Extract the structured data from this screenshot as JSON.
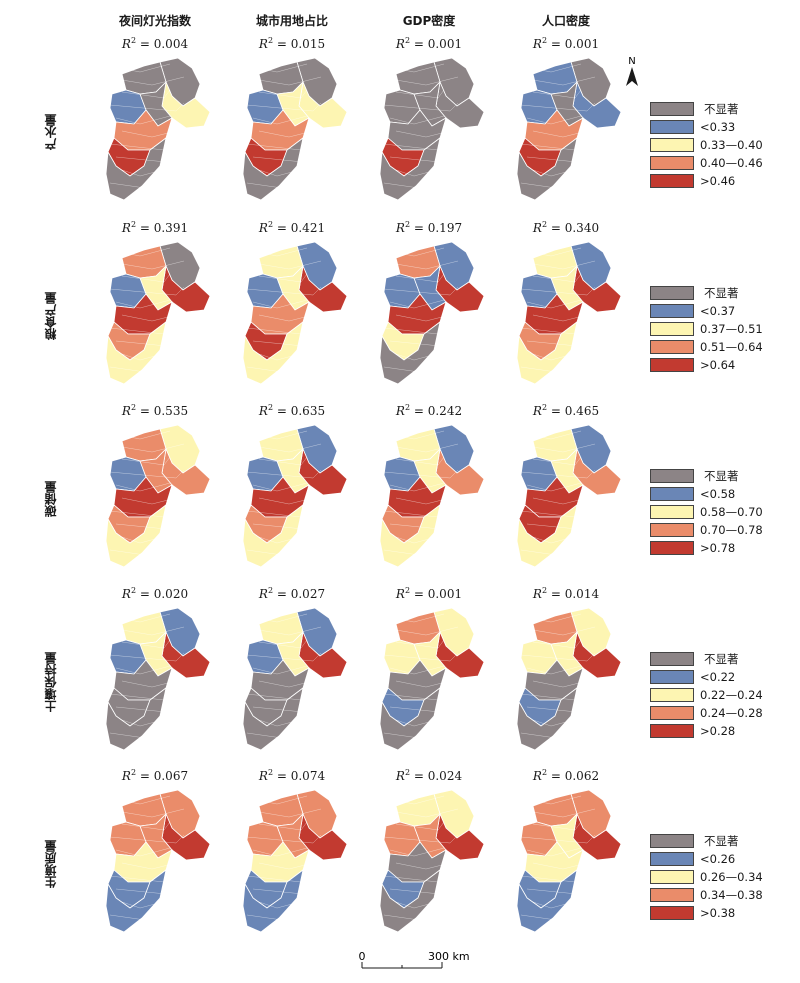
{
  "columns": [
    "夜间灯光指数",
    "城市用地占比",
    "GDP密度",
    "人口密度"
  ],
  "rows": [
    {
      "label": "产水量",
      "r2": [
        "0.004",
        "0.015",
        "0.001",
        "0.001"
      ],
      "legend": [
        "不显著",
        "<0.33",
        "0.33—0.40",
        "0.40—0.46",
        ">0.46"
      ]
    },
    {
      "label": "粮食产量",
      "r2": [
        "0.391",
        "0.421",
        "0.197",
        "0.340"
      ],
      "legend": [
        "不显著",
        "<0.37",
        "0.37—0.51",
        "0.51—0.64",
        ">0.64"
      ]
    },
    {
      "label": "碳储量",
      "r2": [
        "0.535",
        "0.635",
        "0.242",
        "0.465"
      ],
      "legend": [
        "不显著",
        "<0.58",
        "0.58—0.70",
        "0.70—0.78",
        ">0.78"
      ]
    },
    {
      "label": "土壤保持量",
      "r2": [
        "0.020",
        "0.027",
        "0.001",
        "0.014"
      ],
      "legend": [
        "不显著",
        "<0.22",
        "0.22—0.24",
        "0.24—0.28",
        ">0.28"
      ]
    },
    {
      "label": "生境质量",
      "r2": [
        "0.067",
        "0.074",
        "0.024",
        "0.062"
      ],
      "legend": [
        "不显著",
        "<0.26",
        "0.26—0.34",
        "0.34—0.38",
        ">0.38"
      ]
    }
  ],
  "r2_prefix": "R",
  "r2_sup": "2",
  "r2_eq": " = ",
  "north_label": "N",
  "scale": {
    "zero": "0",
    "distance": "300 km"
  },
  "colors": {
    "not_significant": "#8c8486",
    "low": "#6a86b6",
    "mid": "#fdf5b2",
    "high": "#ea8c6a",
    "very_high": "#c23a30",
    "border": "#ffffff"
  },
  "class_patterns": [
    [
      [
        0,
        0,
        2,
        1,
        0,
        3,
        4,
        0
      ],
      [
        0,
        0,
        2,
        1,
        2,
        3,
        4,
        0
      ],
      [
        0,
        0,
        0,
        0,
        0,
        0,
        4,
        0
      ],
      [
        0,
        1,
        1,
        1,
        0,
        3,
        4,
        0
      ]
    ],
    [
      [
        0,
        3,
        4,
        1,
        2,
        4,
        3,
        2
      ],
      [
        1,
        2,
        4,
        1,
        2,
        3,
        4,
        2
      ],
      [
        1,
        3,
        4,
        1,
        1,
        4,
        2,
        0
      ],
      [
        1,
        2,
        4,
        1,
        2,
        4,
        3,
        2
      ]
    ],
    [
      [
        2,
        3,
        3,
        1,
        3,
        4,
        3,
        2
      ],
      [
        1,
        2,
        4,
        1,
        2,
        4,
        3,
        2
      ],
      [
        1,
        2,
        3,
        1,
        2,
        4,
        3,
        2
      ],
      [
        1,
        2,
        3,
        1,
        2,
        4,
        4,
        2
      ]
    ],
    [
      [
        1,
        2,
        4,
        1,
        2,
        0,
        0,
        0
      ],
      [
        1,
        2,
        4,
        1,
        2,
        0,
        0,
        0
      ],
      [
        2,
        3,
        4,
        2,
        2,
        0,
        1,
        0
      ],
      [
        2,
        3,
        4,
        2,
        2,
        0,
        1,
        0
      ]
    ],
    [
      [
        3,
        3,
        4,
        3,
        3,
        2,
        1,
        1
      ],
      [
        3,
        3,
        4,
        3,
        3,
        2,
        1,
        1
      ],
      [
        2,
        2,
        4,
        3,
        3,
        0,
        1,
        0
      ],
      [
        3,
        3,
        4,
        3,
        2,
        2,
        1,
        1
      ]
    ]
  ]
}
